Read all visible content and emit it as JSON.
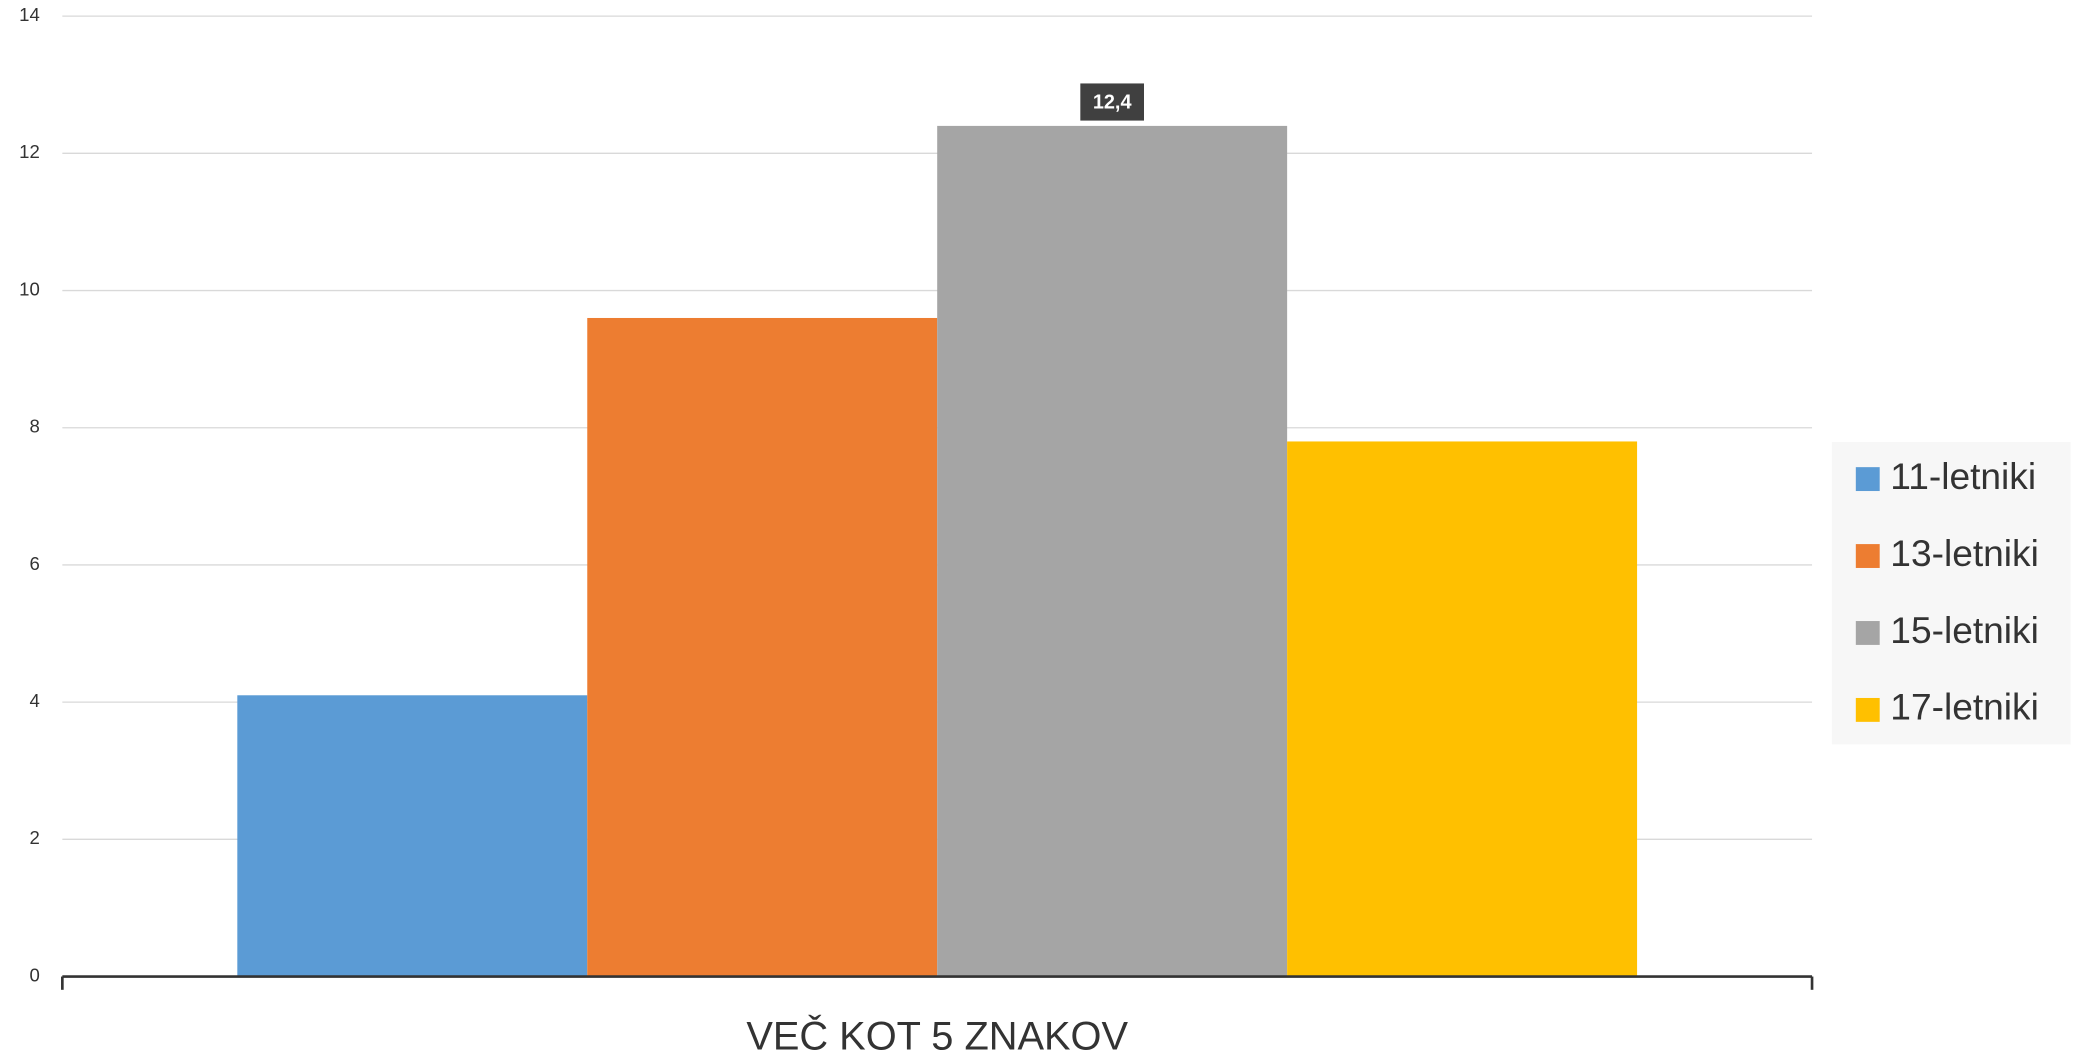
{
  "chart_data": {
    "type": "bar",
    "categories": [
      "VEČ KOT 5 ZNAKOV"
    ],
    "series": [
      {
        "name": "11-letniki",
        "color": "#5b9bd5",
        "values": [
          4.1
        ]
      },
      {
        "name": "13-letniki",
        "color": "#ed7d31",
        "values": [
          9.6
        ]
      },
      {
        "name": "15-letniki",
        "color": "#a5a5a5",
        "values": [
          12.4
        ],
        "value_labels": [
          "12,4"
        ]
      },
      {
        "name": "17-letniki",
        "color": "#ffc000",
        "values": [
          7.8
        ]
      }
    ],
    "ylim": [
      0,
      14
    ],
    "yticks": [
      0,
      2,
      4,
      6,
      8,
      10,
      12,
      14
    ],
    "grid": true,
    "legend": "right"
  }
}
